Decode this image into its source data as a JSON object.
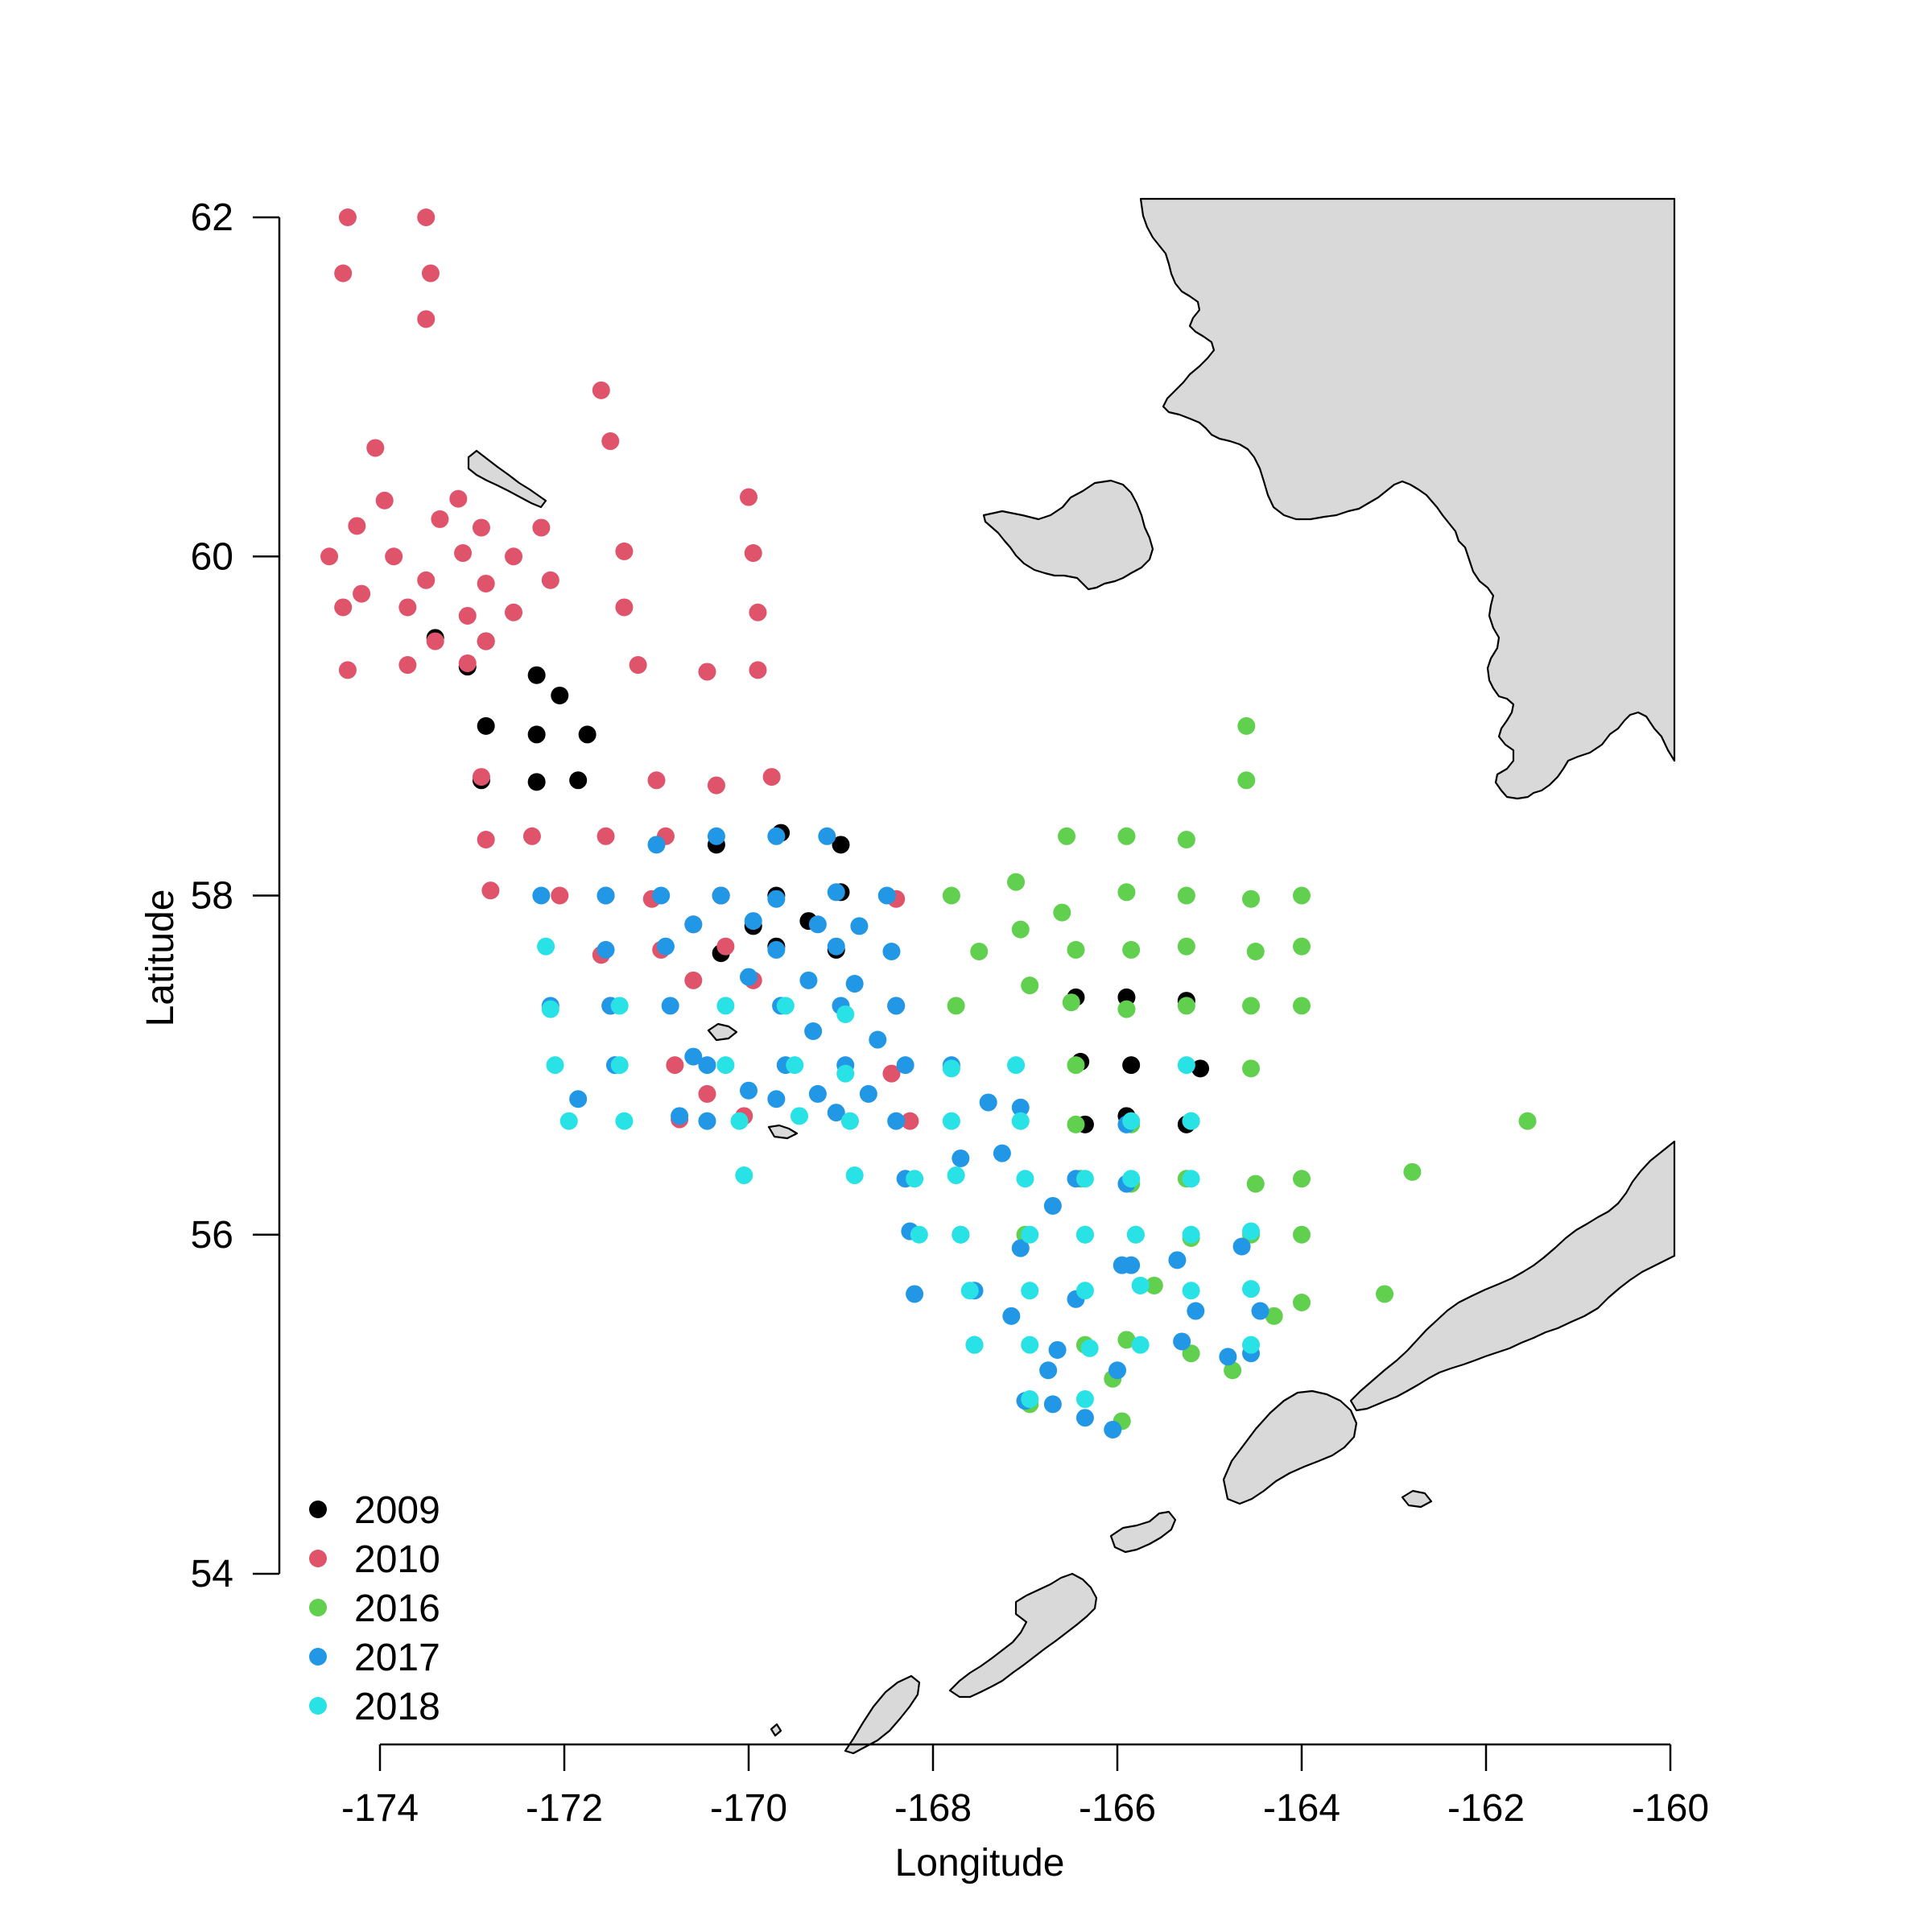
{
  "chart_data": {
    "type": "scatter",
    "title": "",
    "xlabel": "Longitude",
    "ylabel": "Latitude",
    "xlim": [
      -174,
      -160
    ],
    "ylim": [
      54,
      62
    ],
    "x_ticks": [
      "-174",
      "-172",
      "-170",
      "-168",
      "-166",
      "-164",
      "-162",
      "-160"
    ],
    "y_ticks": [
      "54",
      "56",
      "58",
      "60",
      "62"
    ],
    "legend_position": "bottom-left",
    "land_color": "#d9d9d9",
    "series": [
      {
        "name": "2009",
        "color": "#000000",
        "points": [
          [
            -173.4,
            59.52
          ],
          [
            -172.85,
            59.5
          ],
          [
            -173.05,
            59.35
          ],
          [
            -172.3,
            59.3
          ],
          [
            -172.05,
            59.18
          ],
          [
            -172.85,
            59.0
          ],
          [
            -172.3,
            58.95
          ],
          [
            -171.75,
            58.95
          ],
          [
            -172.9,
            58.68
          ],
          [
            -172.3,
            58.67
          ],
          [
            -171.85,
            58.68
          ],
          [
            -169.65,
            58.37
          ],
          [
            -170.35,
            58.3
          ],
          [
            -169.0,
            58.3
          ],
          [
            -170.3,
            58.0
          ],
          [
            -169.7,
            58.0
          ],
          [
            -169.0,
            58.02
          ],
          [
            -169.35,
            57.85
          ],
          [
            -169.95,
            57.82
          ],
          [
            -169.7,
            57.7
          ],
          [
            -170.3,
            57.66
          ],
          [
            -169.05,
            57.68
          ],
          [
            -166.45,
            57.4
          ],
          [
            -165.9,
            57.4
          ],
          [
            -165.25,
            57.38
          ],
          [
            -166.4,
            57.02
          ],
          [
            -165.85,
            57.0
          ],
          [
            -165.1,
            56.98
          ],
          [
            -166.35,
            56.65
          ],
          [
            -165.9,
            56.7
          ],
          [
            -165.25,
            56.65
          ]
        ]
      },
      {
        "name": "2010",
        "color": "#df536b",
        "points": [
          [
            -174.35,
            62.0
          ],
          [
            -173.5,
            62.0
          ],
          [
            -174.4,
            61.67
          ],
          [
            -173.45,
            61.67
          ],
          [
            -173.5,
            61.4
          ],
          [
            -171.6,
            60.98
          ],
          [
            -171.5,
            60.68
          ],
          [
            -174.05,
            60.64
          ],
          [
            -173.95,
            60.33
          ],
          [
            -173.15,
            60.34
          ],
          [
            -170.0,
            60.35
          ],
          [
            -174.25,
            60.18
          ],
          [
            -173.35,
            60.22
          ],
          [
            -172.9,
            60.17
          ],
          [
            -172.25,
            60.17
          ],
          [
            -174.55,
            60.0
          ],
          [
            -173.85,
            60.0
          ],
          [
            -173.1,
            60.02
          ],
          [
            -172.55,
            60.0
          ],
          [
            -171.35,
            60.03
          ],
          [
            -169.95,
            60.02
          ],
          [
            -173.5,
            59.86
          ],
          [
            -172.85,
            59.84
          ],
          [
            -172.15,
            59.86
          ],
          [
            -174.2,
            59.78
          ],
          [
            -174.4,
            59.7
          ],
          [
            -173.7,
            59.7
          ],
          [
            -172.55,
            59.67
          ],
          [
            -171.35,
            59.7
          ],
          [
            -169.9,
            59.67
          ],
          [
            -173.05,
            59.65
          ],
          [
            -173.4,
            59.5
          ],
          [
            -172.85,
            59.5
          ],
          [
            -174.35,
            59.33
          ],
          [
            -173.7,
            59.36
          ],
          [
            -173.05,
            59.37
          ],
          [
            -171.2,
            59.36
          ],
          [
            -170.45,
            59.32
          ],
          [
            -169.9,
            59.33
          ],
          [
            -169.75,
            58.7
          ],
          [
            -170.35,
            58.65
          ],
          [
            -171.0,
            58.68
          ],
          [
            -172.9,
            58.7
          ],
          [
            -172.35,
            58.35
          ],
          [
            -171.55,
            58.35
          ],
          [
            -170.9,
            58.35
          ],
          [
            -172.85,
            58.33
          ],
          [
            -172.8,
            58.03
          ],
          [
            -172.05,
            58.0
          ],
          [
            -171.55,
            58.0
          ],
          [
            -171.05,
            57.98
          ],
          [
            -170.3,
            58.0
          ],
          [
            -168.4,
            57.98
          ],
          [
            -170.6,
            57.83
          ],
          [
            -170.25,
            57.7
          ],
          [
            -170.95,
            57.68
          ],
          [
            -171.6,
            57.65
          ],
          [
            -170.6,
            57.5
          ],
          [
            -169.95,
            57.5
          ],
          [
            -171.5,
            57.35
          ],
          [
            -168.4,
            57.35
          ],
          [
            -170.8,
            57.0
          ],
          [
            -168.45,
            56.95
          ],
          [
            -170.45,
            56.83
          ],
          [
            -170.75,
            56.68
          ],
          [
            -170.05,
            56.7
          ],
          [
            -168.25,
            56.67
          ]
        ]
      },
      {
        "name": "2016",
        "color": "#61d04f",
        "points": [
          [
            -164.6,
            59.0
          ],
          [
            -164.6,
            58.68
          ],
          [
            -166.55,
            58.35
          ],
          [
            -165.9,
            58.35
          ],
          [
            -165.25,
            58.33
          ],
          [
            -167.1,
            58.08
          ],
          [
            -167.8,
            58.0
          ],
          [
            -165.9,
            58.02
          ],
          [
            -165.25,
            58.0
          ],
          [
            -164.55,
            57.98
          ],
          [
            -164.0,
            58.0
          ],
          [
            -166.6,
            57.9
          ],
          [
            -167.05,
            57.8
          ],
          [
            -167.5,
            57.67
          ],
          [
            -166.45,
            57.68
          ],
          [
            -165.85,
            57.68
          ],
          [
            -165.25,
            57.7
          ],
          [
            -164.5,
            57.67
          ],
          [
            -164.0,
            57.7
          ],
          [
            -166.95,
            57.47
          ],
          [
            -167.75,
            57.35
          ],
          [
            -166.5,
            57.37
          ],
          [
            -165.9,
            57.33
          ],
          [
            -165.25,
            57.35
          ],
          [
            -164.55,
            57.35
          ],
          [
            -164.0,
            57.35
          ],
          [
            -166.45,
            57.0
          ],
          [
            -164.55,
            56.98
          ],
          [
            -161.55,
            56.67
          ],
          [
            -166.45,
            56.65
          ],
          [
            -165.85,
            56.65
          ],
          [
            -165.2,
            56.67
          ],
          [
            -162.8,
            56.37
          ],
          [
            -166.4,
            56.33
          ],
          [
            -165.85,
            56.3
          ],
          [
            -165.25,
            56.33
          ],
          [
            -164.5,
            56.3
          ],
          [
            -164.0,
            56.33
          ],
          [
            -167.0,
            56.0
          ],
          [
            -166.35,
            56.0
          ],
          [
            -165.8,
            56.0
          ],
          [
            -165.2,
            55.98
          ],
          [
            -164.55,
            56.0
          ],
          [
            -164.0,
            56.0
          ],
          [
            -165.6,
            55.7
          ],
          [
            -163.1,
            55.65
          ],
          [
            -164.0,
            55.6
          ],
          [
            -164.3,
            55.52
          ],
          [
            -165.9,
            55.38
          ],
          [
            -166.35,
            55.35
          ],
          [
            -165.2,
            55.3
          ],
          [
            -166.05,
            55.15
          ],
          [
            -164.75,
            55.2
          ],
          [
            -166.95,
            55.0
          ],
          [
            -165.95,
            54.9
          ]
        ]
      },
      {
        "name": "2017",
        "color": "#2297e6",
        "points": [
          [
            -170.35,
            58.35
          ],
          [
            -169.7,
            58.35
          ],
          [
            -169.15,
            58.35
          ],
          [
            -171.0,
            58.3
          ],
          [
            -172.25,
            58.0
          ],
          [
            -171.55,
            58.0
          ],
          [
            -170.95,
            58.0
          ],
          [
            -170.3,
            58.0
          ],
          [
            -169.7,
            57.98
          ],
          [
            -169.05,
            58.02
          ],
          [
            -168.5,
            58.0
          ],
          [
            -170.6,
            57.83
          ],
          [
            -169.95,
            57.85
          ],
          [
            -169.25,
            57.83
          ],
          [
            -168.8,
            57.82
          ],
          [
            -170.9,
            57.7
          ],
          [
            -171.55,
            57.68
          ],
          [
            -169.7,
            57.68
          ],
          [
            -169.05,
            57.7
          ],
          [
            -168.45,
            57.67
          ],
          [
            -170.0,
            57.52
          ],
          [
            -169.35,
            57.5
          ],
          [
            -168.85,
            57.48
          ],
          [
            -172.15,
            57.35
          ],
          [
            -171.5,
            57.35
          ],
          [
            -170.85,
            57.35
          ],
          [
            -169.65,
            57.35
          ],
          [
            -169.0,
            57.35
          ],
          [
            -168.4,
            57.35
          ],
          [
            -169.3,
            57.2
          ],
          [
            -168.6,
            57.15
          ],
          [
            -170.6,
            57.05
          ],
          [
            -171.45,
            57.0
          ],
          [
            -170.45,
            57.0
          ],
          [
            -169.6,
            57.0
          ],
          [
            -168.95,
            57.0
          ],
          [
            -168.3,
            57.0
          ],
          [
            -167.8,
            57.0
          ],
          [
            -170.0,
            56.85
          ],
          [
            -169.7,
            56.8
          ],
          [
            -169.25,
            56.83
          ],
          [
            -168.7,
            56.83
          ],
          [
            -171.85,
            56.8
          ],
          [
            -167.4,
            56.78
          ],
          [
            -167.05,
            56.75
          ],
          [
            -170.75,
            56.7
          ],
          [
            -170.45,
            56.67
          ],
          [
            -169.05,
            56.72
          ],
          [
            -168.4,
            56.67
          ],
          [
            -165.9,
            56.65
          ],
          [
            -167.25,
            56.48
          ],
          [
            -167.7,
            56.45
          ],
          [
            -168.3,
            56.33
          ],
          [
            -166.45,
            56.33
          ],
          [
            -165.9,
            56.3
          ],
          [
            -166.7,
            56.17
          ],
          [
            -168.25,
            56.02
          ],
          [
            -167.7,
            56.0
          ],
          [
            -167.05,
            55.92
          ],
          [
            -164.65,
            55.93
          ],
          [
            -165.95,
            55.82
          ],
          [
            -165.85,
            55.82
          ],
          [
            -165.35,
            55.85
          ],
          [
            -168.2,
            55.65
          ],
          [
            -167.55,
            55.67
          ],
          [
            -166.45,
            55.62
          ],
          [
            -165.15,
            55.55
          ],
          [
            -164.45,
            55.55
          ],
          [
            -167.15,
            55.52
          ],
          [
            -167.55,
            55.35
          ],
          [
            -166.65,
            55.32
          ],
          [
            -165.3,
            55.37
          ],
          [
            -164.8,
            55.28
          ],
          [
            -164.55,
            55.3
          ],
          [
            -166.75,
            55.2
          ],
          [
            -166.0,
            55.2
          ],
          [
            -167.0,
            55.02
          ],
          [
            -166.7,
            55.0
          ],
          [
            -166.35,
            54.92
          ],
          [
            -166.05,
            54.85
          ]
        ]
      },
      {
        "name": "2018",
        "color": "#28e2e5",
        "points": [
          [
            -172.2,
            57.7
          ],
          [
            -172.15,
            57.33
          ],
          [
            -172.1,
            57.0
          ],
          [
            -171.95,
            56.67
          ],
          [
            -171.4,
            57.35
          ],
          [
            -171.4,
            57.0
          ],
          [
            -171.35,
            56.67
          ],
          [
            -170.25,
            57.35
          ],
          [
            -170.25,
            57.0
          ],
          [
            -170.1,
            56.67
          ],
          [
            -170.05,
            56.35
          ],
          [
            -169.6,
            57.35
          ],
          [
            -169.5,
            57.0
          ],
          [
            -169.45,
            56.7
          ],
          [
            -168.95,
            57.3
          ],
          [
            -168.95,
            56.95
          ],
          [
            -168.9,
            56.67
          ],
          [
            -168.85,
            56.35
          ],
          [
            -168.2,
            56.33
          ],
          [
            -168.15,
            56.0
          ],
          [
            -167.8,
            56.98
          ],
          [
            -167.8,
            56.67
          ],
          [
            -167.75,
            56.35
          ],
          [
            -167.7,
            56.0
          ],
          [
            -167.6,
            55.67
          ],
          [
            -167.55,
            55.35
          ],
          [
            -167.1,
            57.0
          ],
          [
            -167.05,
            56.67
          ],
          [
            -167.0,
            56.33
          ],
          [
            -166.95,
            56.0
          ],
          [
            -166.95,
            55.67
          ],
          [
            -166.95,
            55.35
          ],
          [
            -166.95,
            55.03
          ],
          [
            -166.35,
            56.33
          ],
          [
            -166.35,
            56.0
          ],
          [
            -166.35,
            55.67
          ],
          [
            -166.3,
            55.33
          ],
          [
            -166.35,
            55.03
          ],
          [
            -165.85,
            56.67
          ],
          [
            -165.85,
            56.33
          ],
          [
            -165.8,
            56.0
          ],
          [
            -165.75,
            55.7
          ],
          [
            -165.75,
            55.35
          ],
          [
            -165.2,
            56.33
          ],
          [
            -165.2,
            56.0
          ],
          [
            -165.2,
            55.67
          ],
          [
            -165.25,
            57.0
          ],
          [
            -165.2,
            56.67
          ],
          [
            -164.55,
            56.02
          ],
          [
            -164.55,
            55.68
          ],
          [
            -164.55,
            55.35
          ]
        ]
      }
    ]
  }
}
